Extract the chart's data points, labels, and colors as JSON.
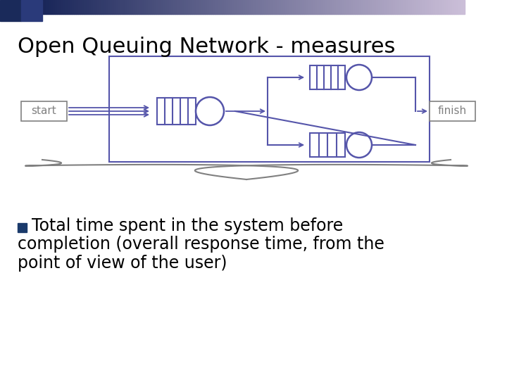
{
  "title": "Open Queuing Network - measures",
  "title_fontsize": 22,
  "title_color": "#000000",
  "bg_color": "#ffffff",
  "header_bar_color1": "#1a3a6b",
  "header_bar_color2": "#8899bb",
  "queue_color": "#5555aa",
  "box_color": "#5555aa",
  "start_label": "start",
  "finish_label": "finish",
  "bullet_color": "#1a3a6b",
  "bullet_text_line1": "Total time spent in the system before",
  "bullet_text_line2": "completion (overall response time, from the",
  "bullet_text_line3": "point of view of the user)",
  "text_fontsize": 17
}
